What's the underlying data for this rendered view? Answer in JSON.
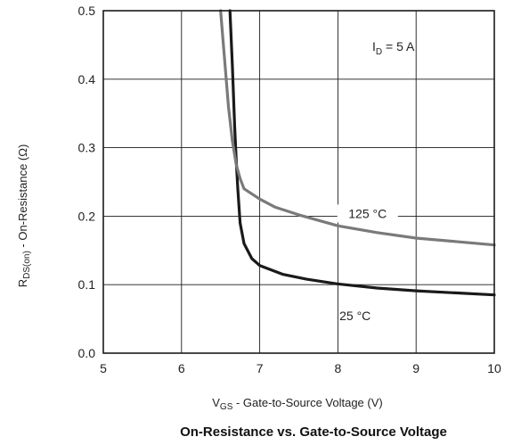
{
  "chart_data": {
    "type": "line",
    "title": "On-Resistance vs. Gate-to-Source Voltage",
    "xlabel": {
      "main": "V",
      "sub": "GS",
      "rest": " - Gate-to-Source Voltage (V)"
    },
    "ylabel": {
      "main": "R",
      "sub": "DS(on)",
      "rest": " - On-Resistance (Ω)"
    },
    "xlim": [
      5,
      10
    ],
    "ylim": [
      0.0,
      0.5
    ],
    "xticks": [
      "5",
      "6",
      "7",
      "8",
      "9",
      "10"
    ],
    "yticks": [
      "0.0",
      "0.1",
      "0.2",
      "0.3",
      "0.4",
      "0.5"
    ],
    "grid": true,
    "annotation": {
      "main": "I",
      "sub": "D",
      "rest": " = 5 A"
    },
    "series": [
      {
        "name": "25 °C",
        "color": "#1a1a1a",
        "x": [
          6.62,
          6.65,
          6.68,
          6.7,
          6.72,
          6.75,
          6.8,
          6.9,
          7.0,
          7.3,
          7.6,
          8.0,
          8.5,
          9.0,
          9.5,
          10.0
        ],
        "y": [
          0.5,
          0.42,
          0.33,
          0.28,
          0.24,
          0.19,
          0.16,
          0.138,
          0.128,
          0.115,
          0.108,
          0.101,
          0.095,
          0.091,
          0.088,
          0.085
        ]
      },
      {
        "name": "125 °C",
        "color": "#7a7a7a",
        "x": [
          6.5,
          6.55,
          6.6,
          6.65,
          6.7,
          6.75,
          6.8,
          7.0,
          7.2,
          7.5,
          8.0,
          8.5,
          9.0,
          9.5,
          10.0
        ],
        "y": [
          0.5,
          0.43,
          0.36,
          0.31,
          0.275,
          0.255,
          0.24,
          0.225,
          0.213,
          0.202,
          0.186,
          0.176,
          0.168,
          0.163,
          0.158
        ]
      }
    ]
  }
}
